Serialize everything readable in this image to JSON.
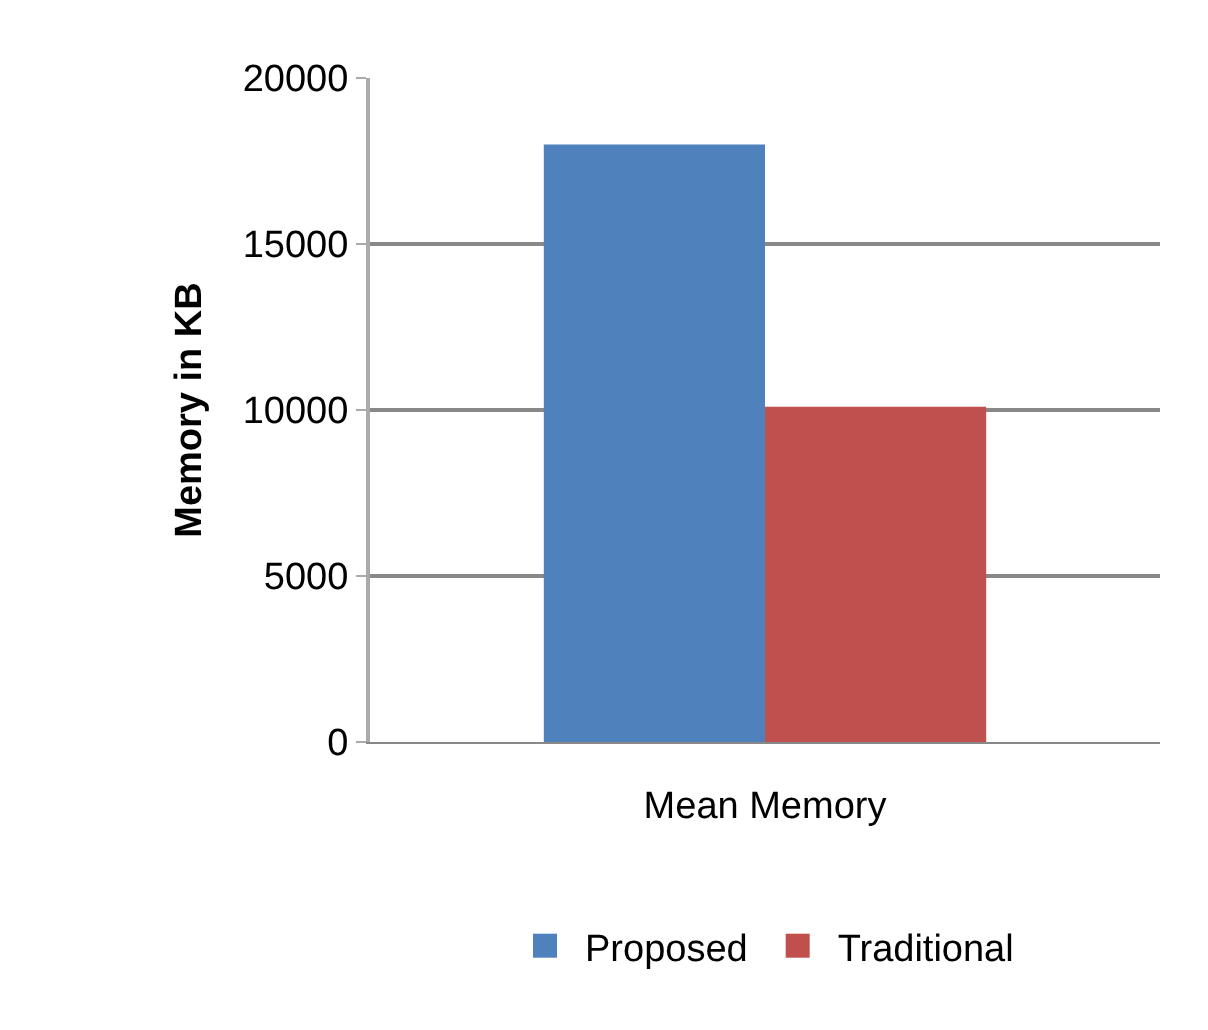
{
  "chart_data": {
    "type": "bar",
    "categories": [
      "Mean Memory"
    ],
    "ylabel": "Memory in KB",
    "series": [
      {
        "name": "Proposed",
        "color": "#4f81bd",
        "values": [
          18000
        ]
      },
      {
        "name": "Traditional",
        "color": "#c0504d",
        "values": [
          10100
        ]
      }
    ],
    "ylim": [
      0,
      20000
    ],
    "yticks": [
      0,
      5000,
      10000,
      15000,
      20000
    ],
    "grid": "y",
    "legend": "bottom"
  }
}
